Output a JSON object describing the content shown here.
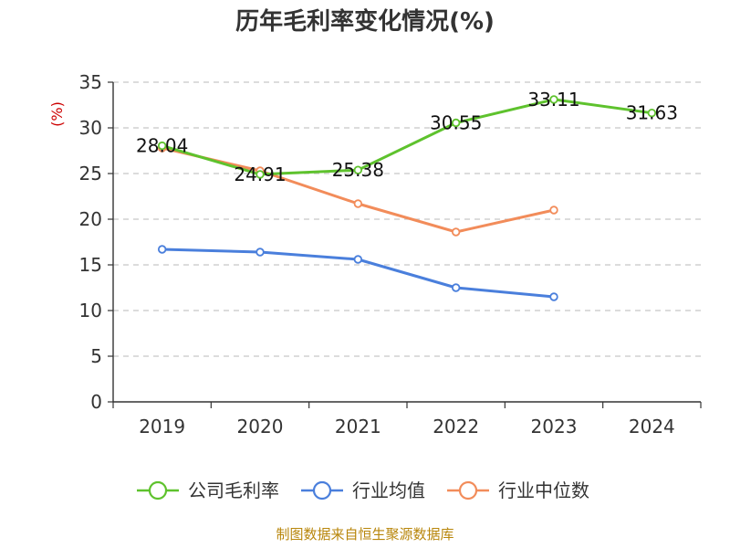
{
  "chart_data": {
    "type": "line",
    "title": "历年毛利率变化情况(%)",
    "ylabel": "(%)",
    "categories": [
      "2019",
      "2020",
      "2021",
      "2022",
      "2023",
      "2024"
    ],
    "ylim": [
      0,
      35
    ],
    "yticks": [
      0,
      5,
      10,
      15,
      20,
      25,
      30,
      35
    ],
    "grid": "horizontal-dashed",
    "legend_position": "bottom",
    "series": [
      {
        "name": "公司毛利率",
        "color": "#5ec22d",
        "values": [
          28.04,
          24.91,
          25.38,
          30.55,
          33.11,
          31.63
        ],
        "labels": [
          "28.04",
          "24.91",
          "25.38",
          "30.55",
          "33.11",
          "31.63"
        ]
      },
      {
        "name": "行业均值",
        "color": "#4a7fdc",
        "values": [
          16.7,
          16.4,
          15.6,
          12.5,
          11.5,
          null
        ]
      },
      {
        "name": "行业中位数",
        "color": "#f28c5a",
        "values": [
          27.8,
          25.3,
          21.7,
          18.6,
          21.0,
          null
        ]
      }
    ],
    "source": "制图数据来自恒生聚源数据库",
    "colors": {
      "unit": "#cc0000",
      "source": "#b8860b",
      "grid": "#c8c8c8",
      "axis": "#333333"
    }
  }
}
